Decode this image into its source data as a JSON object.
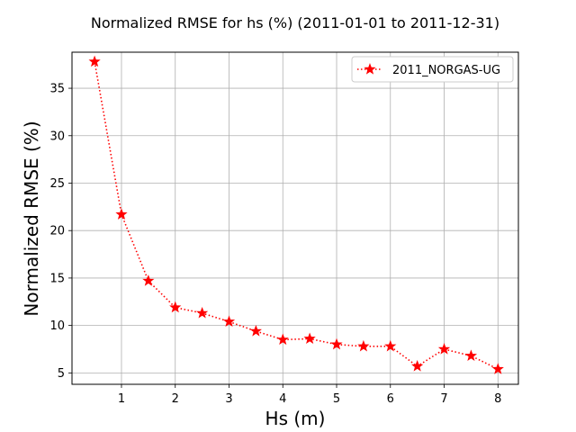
{
  "chart_data": {
    "type": "line",
    "title": "Normalized RMSE for hs (%) (2011-01-01 to 2011-12-31)",
    "xlabel": "Hs (m)",
    "ylabel": "Normalized RMSE (%)",
    "xlim": [
      0.08,
      8.38
    ],
    "ylim": [
      3.8,
      38.8
    ],
    "xticks": [
      1,
      2,
      3,
      4,
      5,
      6,
      7,
      8
    ],
    "yticks": [
      5,
      10,
      15,
      20,
      25,
      30,
      35
    ],
    "grid": true,
    "legend_position": "top-right",
    "series": [
      {
        "name": "2011_NORGAS-UG",
        "color": "#ff0000",
        "line_style": "dotted",
        "marker": "star",
        "x": [
          0.5,
          1.0,
          1.5,
          2.0,
          2.5,
          3.0,
          3.5,
          4.0,
          4.5,
          5.0,
          5.5,
          6.0,
          6.5,
          7.0,
          7.5,
          8.0
        ],
        "y": [
          37.8,
          21.7,
          14.7,
          11.9,
          11.3,
          10.4,
          9.4,
          8.5,
          8.6,
          8.0,
          7.8,
          7.8,
          5.7,
          7.5,
          6.8,
          5.4
        ]
      }
    ]
  }
}
